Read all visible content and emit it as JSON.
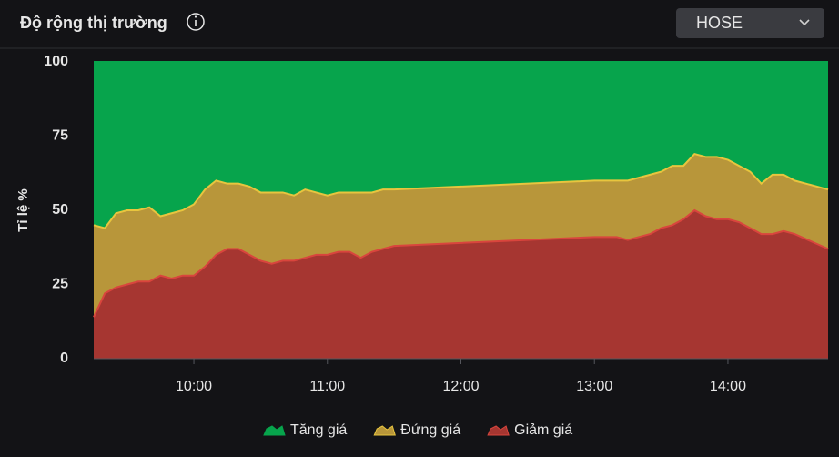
{
  "header": {
    "title": "Độ rộng thị trường",
    "market": "HOSE"
  },
  "chart_data": {
    "type": "stacked_area",
    "y_label": "Tỉ lệ %",
    "x": [
      "09:15",
      "09:20",
      "09:25",
      "09:30",
      "09:35",
      "09:40",
      "09:45",
      "09:50",
      "09:55",
      "10:00",
      "10:05",
      "10:10",
      "10:15",
      "10:20",
      "10:25",
      "10:30",
      "10:35",
      "10:40",
      "10:45",
      "10:50",
      "10:55",
      "11:00",
      "11:05",
      "11:10",
      "11:15",
      "11:20",
      "11:25",
      "11:30",
      "13:00",
      "13:05",
      "13:10",
      "13:15",
      "13:20",
      "13:25",
      "13:30",
      "13:35",
      "13:40",
      "13:45",
      "13:50",
      "13:55",
      "14:00",
      "14:05",
      "14:10",
      "14:15",
      "14:20",
      "14:25",
      "14:30",
      "14:45"
    ],
    "xlim": [
      "09:15",
      "14:45"
    ],
    "xticks": [
      "10:00",
      "11:00",
      "12:00",
      "13:00",
      "14:00"
    ],
    "ylim": [
      0,
      100
    ],
    "yticks": [
      0,
      25,
      50,
      75,
      100
    ],
    "grid": false,
    "series": [
      {
        "name": "Tăng giá",
        "color": "#07a44c",
        "line_color": "#07a44c",
        "values": [
          55,
          56,
          51,
          50,
          50,
          49,
          52,
          51,
          50,
          48,
          43,
          40,
          41,
          41,
          42,
          44,
          44,
          44,
          45,
          43,
          44,
          45,
          44,
          44,
          44,
          44,
          43,
          43,
          40,
          40,
          40,
          40,
          39,
          38,
          37,
          35,
          35,
          31,
          32,
          32,
          33,
          35,
          37,
          41,
          38,
          38,
          40,
          43
        ]
      },
      {
        "name": "Đứng giá",
        "color": "#b8963a",
        "line_color": "#e8c53e",
        "values": [
          31,
          22,
          25,
          25,
          24,
          25,
          20,
          22,
          22,
          24,
          26,
          25,
          22,
          22,
          23,
          23,
          24,
          23,
          22,
          23,
          21,
          20,
          20,
          20,
          22,
          20,
          20,
          19,
          19,
          19,
          19,
          20,
          20,
          20,
          19,
          20,
          18,
          19,
          20,
          21,
          20,
          19,
          19,
          17,
          20,
          19,
          18,
          20
        ]
      },
      {
        "name": "Giảm giá",
        "color": "#a63631",
        "line_color": "#d9453d",
        "values": [
          14,
          22,
          24,
          25,
          26,
          26,
          28,
          27,
          28,
          28,
          31,
          35,
          37,
          37,
          35,
          33,
          32,
          33,
          33,
          34,
          35,
          35,
          36,
          36,
          34,
          36,
          37,
          38,
          41,
          41,
          41,
          40,
          41,
          42,
          44,
          45,
          47,
          50,
          48,
          47,
          47,
          46,
          44,
          42,
          42,
          43,
          42,
          37
        ]
      }
    ]
  }
}
